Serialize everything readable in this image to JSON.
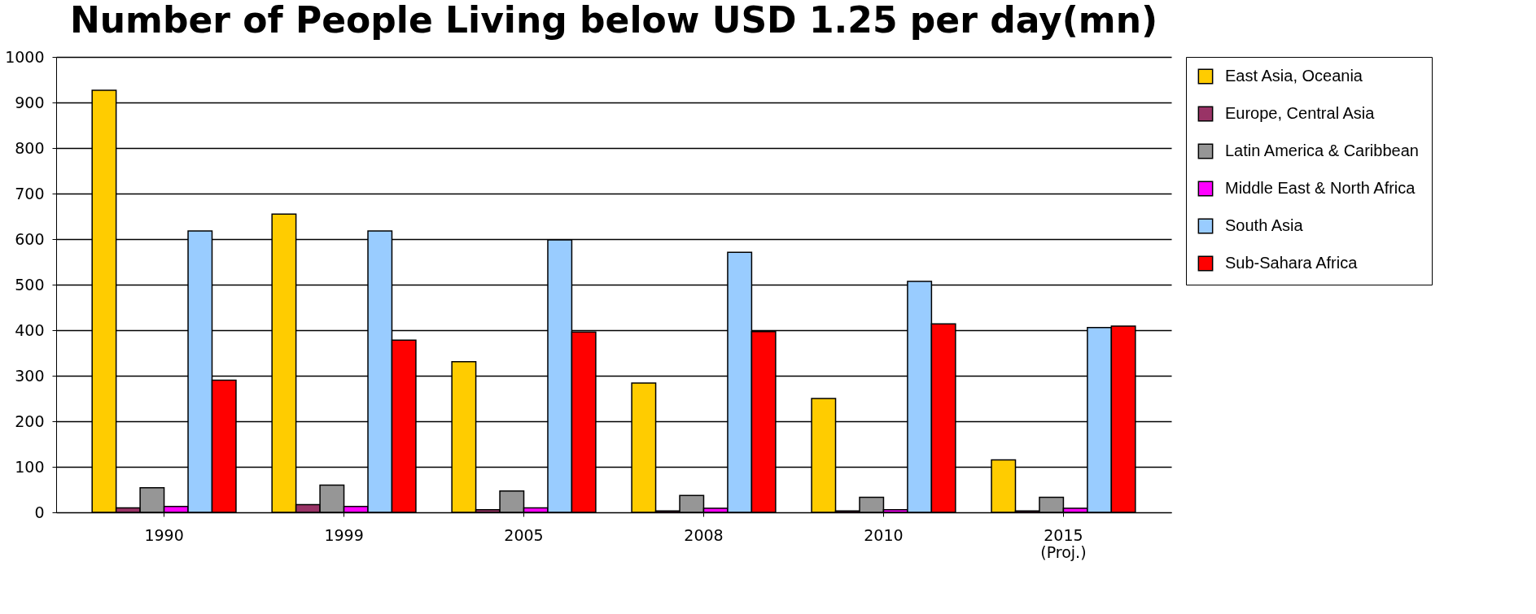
{
  "chart_data": {
    "type": "bar",
    "title": "Number of People Living below USD 1.25 per day(mn)",
    "categories": [
      "1990",
      "1999",
      "2005",
      "2008",
      "2010",
      "2015\n(Proj.)"
    ],
    "series": [
      {
        "name": "East Asia, Oceania",
        "color": "#ffcc00",
        "values": [
          927,
          655,
          331,
          284,
          250,
          115
        ]
      },
      {
        "name": "Europe, Central Asia",
        "color": "#993366",
        "values": [
          10,
          17,
          6,
          3,
          3,
          3
        ]
      },
      {
        "name": "Latin America & Caribbean",
        "color": "#969696",
        "values": [
          54,
          60,
          47,
          37,
          33,
          33
        ]
      },
      {
        "name": "Middle East & North Africa",
        "color": "#ff00ff",
        "values": [
          13,
          13,
          10,
          9,
          6,
          9
        ]
      },
      {
        "name": "South Asia",
        "color": "#99ccff",
        "values": [
          618,
          618,
          598,
          571,
          507,
          406
        ]
      },
      {
        "name": "Sub-Sahara Africa",
        "color": "#ff0000",
        "values": [
          290,
          378,
          396,
          397,
          414,
          409
        ]
      }
    ],
    "ylim": [
      0,
      1000
    ],
    "yticks": [
      0,
      100,
      200,
      300,
      400,
      500,
      600,
      700,
      800,
      900,
      1000
    ],
    "grid": "y",
    "legend": "right"
  }
}
